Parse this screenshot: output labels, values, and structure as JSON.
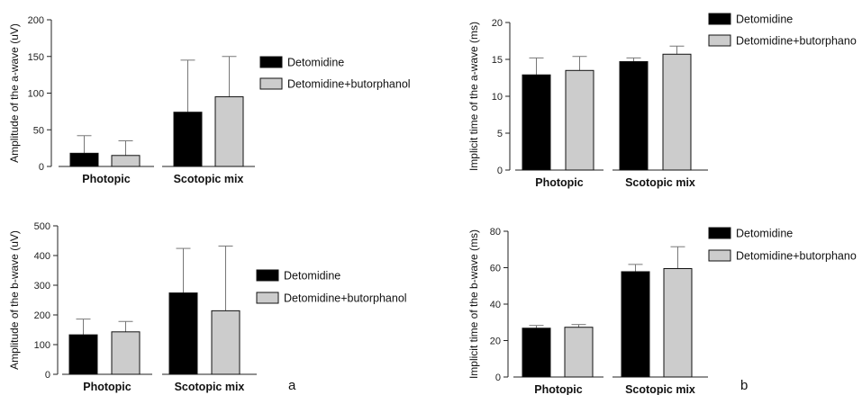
{
  "chart_data": [
    {
      "type": "bar",
      "ylabel": "Amplitude of the a-wave (uV)",
      "ylim": [
        0,
        200
      ],
      "yticks": [
        0,
        50,
        100,
        150,
        200
      ],
      "categories": [
        "Photopic",
        "Scotopic mix"
      ],
      "series": [
        {
          "name": "Detomidine",
          "color": "#000000",
          "values": [
            18,
            74
          ],
          "errors": [
            24,
            71
          ]
        },
        {
          "name": "Detomidine+butorphanol",
          "color": "#cccccc",
          "values": [
            15,
            95
          ],
          "errors": [
            20,
            55
          ]
        }
      ],
      "legend_position": "right",
      "panel_label": ""
    },
    {
      "type": "bar",
      "ylabel": "Implicit time of the a-wave (ms)",
      "ylim": [
        0,
        20
      ],
      "yticks": [
        0,
        5,
        10,
        15,
        20
      ],
      "categories": [
        "Photopic",
        "Scotopic mix"
      ],
      "series": [
        {
          "name": "Detomidine",
          "color": "#000000",
          "values": [
            12.9,
            14.7
          ],
          "errors": [
            2.3,
            0.5
          ]
        },
        {
          "name": "Detomidine+butorphano",
          "color": "#cccccc",
          "values": [
            13.5,
            15.7
          ],
          "errors": [
            1.9,
            1.1
          ]
        }
      ],
      "legend_position": "top-right",
      "panel_label": ""
    },
    {
      "type": "bar",
      "ylabel": "Amplitude of the b-wave (uV)",
      "ylim": [
        0,
        500
      ],
      "yticks": [
        0,
        100,
        200,
        300,
        400,
        500
      ],
      "categories": [
        "Photopic",
        "Scotopic mix"
      ],
      "series": [
        {
          "name": "Detomidine",
          "color": "#000000",
          "values": [
            133,
            274
          ],
          "errors": [
            53,
            150
          ]
        },
        {
          "name": "Detomidine+butorphanol",
          "color": "#cccccc",
          "values": [
            143,
            214
          ],
          "errors": [
            35,
            218
          ]
        }
      ],
      "legend_position": "right",
      "panel_label": "a"
    },
    {
      "type": "bar",
      "ylabel": "Implicit time of the b-wave (ms)",
      "ylim": [
        0,
        80
      ],
      "yticks": [
        0,
        20,
        40,
        60,
        80
      ],
      "categories": [
        "Photopic",
        "Scotopic mix"
      ],
      "series": [
        {
          "name": "Detomidine",
          "color": "#000000",
          "values": [
            26.8,
            57.8
          ],
          "errors": [
            1.5,
            4
          ]
        },
        {
          "name": "Detomidine+butorphano",
          "color": "#cccccc",
          "values": [
            27.3,
            59.5
          ],
          "errors": [
            1.5,
            12
          ]
        }
      ],
      "legend_position": "top-right",
      "panel_label": "b"
    }
  ]
}
